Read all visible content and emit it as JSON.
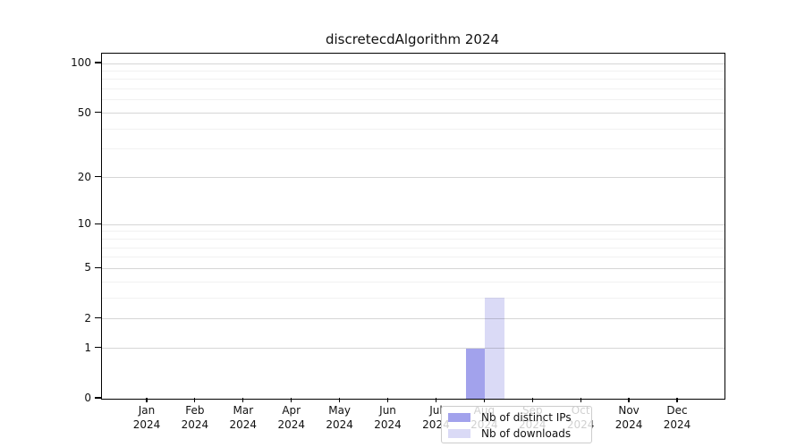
{
  "chart_data": {
    "type": "bar",
    "title": "discretecdAlgorithm 2024",
    "x": {
      "months": [
        "Jan",
        "Feb",
        "Mar",
        "Apr",
        "May",
        "Jun",
        "Jul",
        "Aug",
        "Sep",
        "Oct",
        "Nov",
        "Dec"
      ],
      "year": "2024"
    },
    "series": [
      {
        "name": "Nb of distinct IPs",
        "color": "#a2a2ec",
        "values": [
          0,
          0,
          0,
          0,
          0,
          0,
          0,
          1,
          0,
          0,
          0,
          0
        ]
      },
      {
        "name": "Nb of downloads",
        "color": "#dadaf6",
        "values": [
          0,
          0,
          0,
          0,
          0,
          0,
          0,
          3,
          0,
          0,
          0,
          0
        ]
      }
    ],
    "y_axis": {
      "scale": "log10(1+value)",
      "major_ticks": [
        0,
        1,
        2,
        5,
        10,
        20,
        50,
        100
      ],
      "minor_gridlines": [
        3,
        4,
        6,
        7,
        8,
        9,
        30,
        40,
        60,
        70,
        80,
        90
      ],
      "ylim": [
        0,
        115
      ]
    },
    "legend": {
      "position": "bottom-center"
    },
    "grid": true,
    "colors": {
      "major_grid": "#d9d9d9",
      "minor_grid": "#f0f0f0",
      "axis": "#000000",
      "background": "#ffffff"
    }
  }
}
